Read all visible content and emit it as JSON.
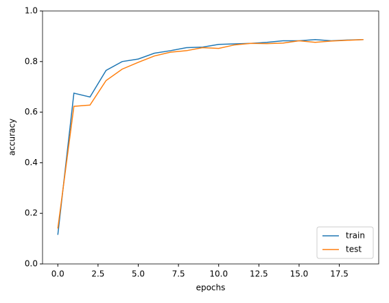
{
  "chart_data": {
    "type": "line",
    "x": [
      0,
      1,
      2,
      3,
      4,
      5,
      6,
      7,
      8,
      9,
      10,
      11,
      12,
      13,
      14,
      15,
      16,
      17,
      18,
      19
    ],
    "series": [
      {
        "name": "train",
        "color": "#1f77b4",
        "values": [
          0.115,
          0.675,
          0.66,
          0.765,
          0.8,
          0.81,
          0.833,
          0.843,
          0.855,
          0.857,
          0.868,
          0.87,
          0.872,
          0.876,
          0.882,
          0.882,
          0.887,
          0.882,
          0.885,
          0.887
        ]
      },
      {
        "name": "test",
        "color": "#ff7f0e",
        "values": [
          0.14,
          0.623,
          0.628,
          0.725,
          0.77,
          0.797,
          0.822,
          0.837,
          0.843,
          0.855,
          0.852,
          0.866,
          0.872,
          0.871,
          0.873,
          0.882,
          0.876,
          0.881,
          0.884,
          0.887
        ]
      }
    ],
    "xlabel": "epochs",
    "ylabel": "accuracy",
    "xlim": [
      -0.95,
      19.95
    ],
    "xticks": [
      {
        "value": 0,
        "label": "0.0"
      },
      2.5,
      {
        "value": 5,
        "label": "5.0"
      },
      7.5,
      {
        "value": 10,
        "label": "10.0"
      },
      12.5,
      {
        "value": 15,
        "label": "15.0"
      },
      17.5
    ],
    "ylim": [
      0,
      1
    ],
    "yticks": [
      {
        "value": 0,
        "label": "0.0"
      },
      0.2,
      0.4,
      0.6,
      0.8,
      {
        "value": 1,
        "label": "1.0"
      }
    ],
    "legend": "lower right"
  }
}
